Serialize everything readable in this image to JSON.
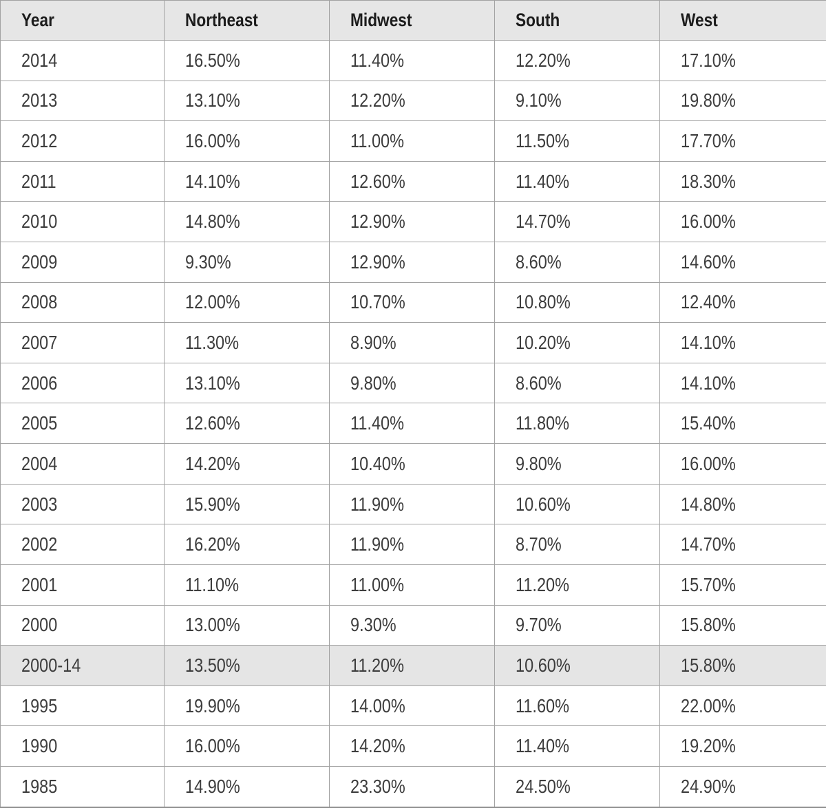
{
  "table": {
    "columns": [
      "Year",
      "Northeast",
      "Midwest",
      "South",
      "West"
    ],
    "rows": [
      {
        "year": "2014",
        "values": [
          "16.50%",
          "11.40%",
          "12.20%",
          "17.10%"
        ],
        "highlight": false
      },
      {
        "year": "2013",
        "values": [
          "13.10%",
          "12.20%",
          "9.10%",
          "19.80%"
        ],
        "highlight": false
      },
      {
        "year": "2012",
        "values": [
          "16.00%",
          "11.00%",
          "11.50%",
          "17.70%"
        ],
        "highlight": false
      },
      {
        "year": "2011",
        "values": [
          "14.10%",
          "12.60%",
          "11.40%",
          "18.30%"
        ],
        "highlight": false
      },
      {
        "year": "2010",
        "values": [
          "14.80%",
          "12.90%",
          "14.70%",
          "16.00%"
        ],
        "highlight": false
      },
      {
        "year": "2009",
        "values": [
          "9.30%",
          "12.90%",
          "8.60%",
          "14.60%"
        ],
        "highlight": false
      },
      {
        "year": "2008",
        "values": [
          "12.00%",
          "10.70%",
          "10.80%",
          "12.40%"
        ],
        "highlight": false
      },
      {
        "year": "2007",
        "values": [
          "11.30%",
          "8.90%",
          "10.20%",
          "14.10%"
        ],
        "highlight": false
      },
      {
        "year": "2006",
        "values": [
          "13.10%",
          "9.80%",
          "8.60%",
          "14.10%"
        ],
        "highlight": false
      },
      {
        "year": "2005",
        "values": [
          "12.60%",
          "11.40%",
          "11.80%",
          "15.40%"
        ],
        "highlight": false
      },
      {
        "year": "2004",
        "values": [
          "14.20%",
          "10.40%",
          "9.80%",
          "16.00%"
        ],
        "highlight": false
      },
      {
        "year": "2003",
        "values": [
          "15.90%",
          "11.90%",
          "10.60%",
          "14.80%"
        ],
        "highlight": false
      },
      {
        "year": "2002",
        "values": [
          "16.20%",
          "11.90%",
          "8.70%",
          "14.70%"
        ],
        "highlight": false
      },
      {
        "year": "2001",
        "values": [
          "11.10%",
          "11.00%",
          "11.20%",
          "15.70%"
        ],
        "highlight": false
      },
      {
        "year": "2000",
        "values": [
          "13.00%",
          "9.30%",
          "9.70%",
          "15.80%"
        ],
        "highlight": false
      },
      {
        "year": "2000-14",
        "values": [
          "13.50%",
          "11.20%",
          "10.60%",
          "15.80%"
        ],
        "highlight": true
      },
      {
        "year": "1995",
        "values": [
          "19.90%",
          "14.00%",
          "11.60%",
          "22.00%"
        ],
        "highlight": false
      },
      {
        "year": "1990",
        "values": [
          "16.00%",
          "14.20%",
          "11.40%",
          "19.20%"
        ],
        "highlight": false
      },
      {
        "year": "1985",
        "values": [
          "14.90%",
          "23.30%",
          "24.50%",
          "24.90%"
        ],
        "highlight": false
      }
    ]
  },
  "colors": {
    "header_bg": "#e6e6e6",
    "highlight_row_bg": "#e5e5e5",
    "border": "#a2a2a2",
    "header_text": "#1c1c1c",
    "body_text": "#3d3d3d"
  },
  "chart_data": {
    "type": "table",
    "title": "",
    "categories": [
      "2014",
      "2013",
      "2012",
      "2011",
      "2010",
      "2009",
      "2008",
      "2007",
      "2006",
      "2005",
      "2004",
      "2003",
      "2002",
      "2001",
      "2000",
      "2000-14",
      "1995",
      "1990",
      "1985"
    ],
    "series": [
      {
        "name": "Northeast",
        "values": [
          16.5,
          13.1,
          16.0,
          14.1,
          14.8,
          9.3,
          12.0,
          11.3,
          13.1,
          12.6,
          14.2,
          15.9,
          16.2,
          11.1,
          13.0,
          13.5,
          19.9,
          16.0,
          14.9
        ]
      },
      {
        "name": "Midwest",
        "values": [
          11.4,
          12.2,
          11.0,
          12.6,
          12.9,
          12.9,
          10.7,
          8.9,
          9.8,
          11.4,
          10.4,
          11.9,
          11.9,
          11.0,
          9.3,
          11.2,
          14.0,
          14.2,
          23.3
        ]
      },
      {
        "name": "South",
        "values": [
          12.2,
          9.1,
          11.5,
          11.4,
          14.7,
          8.6,
          10.8,
          10.2,
          8.6,
          11.8,
          9.8,
          10.6,
          8.7,
          11.2,
          9.7,
          10.6,
          11.6,
          11.4,
          24.5
        ]
      },
      {
        "name": "West",
        "values": [
          17.1,
          19.8,
          17.7,
          18.3,
          16.0,
          14.6,
          12.4,
          14.1,
          14.1,
          15.4,
          16.0,
          14.8,
          14.7,
          15.7,
          15.8,
          15.8,
          22.0,
          19.2,
          24.9
        ]
      }
    ],
    "units": "percent",
    "notes": "Row 2000-14 is a shaded summary/average row"
  }
}
